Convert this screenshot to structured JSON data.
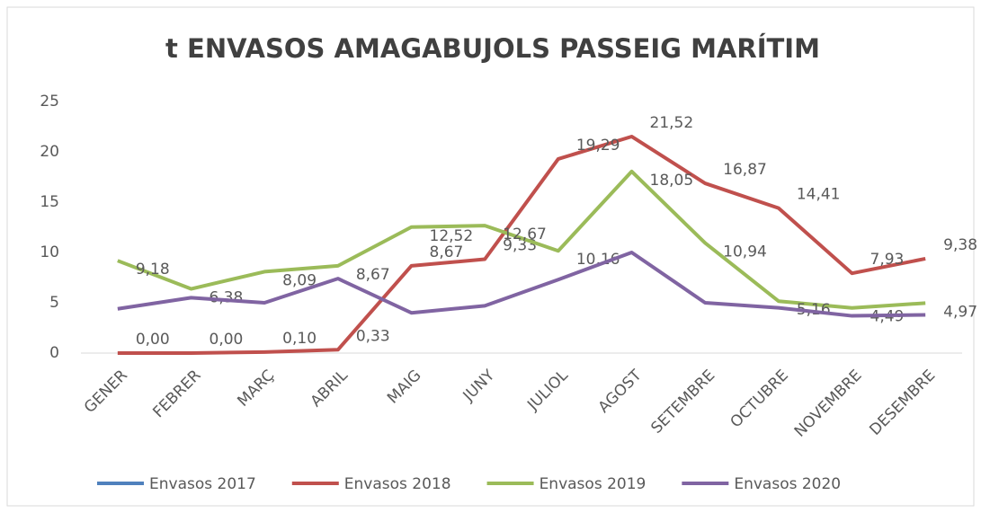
{
  "chart_data": {
    "type": "line",
    "title": "t ENVASOS AMAGABUJOLS PASSEIG MARÍTIM",
    "categories": [
      "GENER",
      "FEBRER",
      "MARÇ",
      "ABRIL",
      "MAIG",
      "JUNY",
      "JULIOL",
      "AGOST",
      "SETEMBRE",
      "OCTUBRE",
      "NOVEMBRE",
      "DESEMBRE"
    ],
    "series": [
      {
        "name": "Envasos  2017",
        "color": "#4f81bd",
        "values": [
          null,
          null,
          null,
          null,
          null,
          null,
          null,
          null,
          null,
          null,
          null,
          null
        ]
      },
      {
        "name": "Envasos 2018",
        "color": "#c0504d",
        "values": [
          0,
          0,
          0.1,
          0.33,
          8.67,
          9.33,
          19.29,
          21.52,
          16.87,
          14.41,
          7.93,
          9.38
        ],
        "value_labels": [
          "0,00",
          "0,00",
          "0,10",
          "0,33",
          "8,67",
          "9,33",
          "19,29",
          "21,52",
          "16,87",
          "14,41",
          "7,93",
          "9,38"
        ]
      },
      {
        "name": "Envasos  2019",
        "color": "#9bbb59",
        "values": [
          9.18,
          6.38,
          8.09,
          8.67,
          12.52,
          12.67,
          10.16,
          18.05,
          10.94,
          5.16,
          4.49,
          4.97
        ],
        "value_labels": [
          "9,18",
          "6,38",
          "8,09",
          "8,67",
          "12,52",
          "12,67",
          "10,16",
          "18,05",
          "10,94",
          "5,16",
          "4,49",
          "4,97"
        ]
      },
      {
        "name": "Envasos  2020",
        "color": "#8064a2",
        "values": [
          4.4,
          5.5,
          5.0,
          7.4,
          4.0,
          4.7,
          7.3,
          10.0,
          5.0,
          4.5,
          3.7,
          3.8
        ]
      }
    ],
    "ylim": [
      0,
      25
    ],
    "yticks": [
      0,
      5,
      10,
      15,
      20,
      25
    ],
    "grid": false,
    "legend": "bottom"
  }
}
